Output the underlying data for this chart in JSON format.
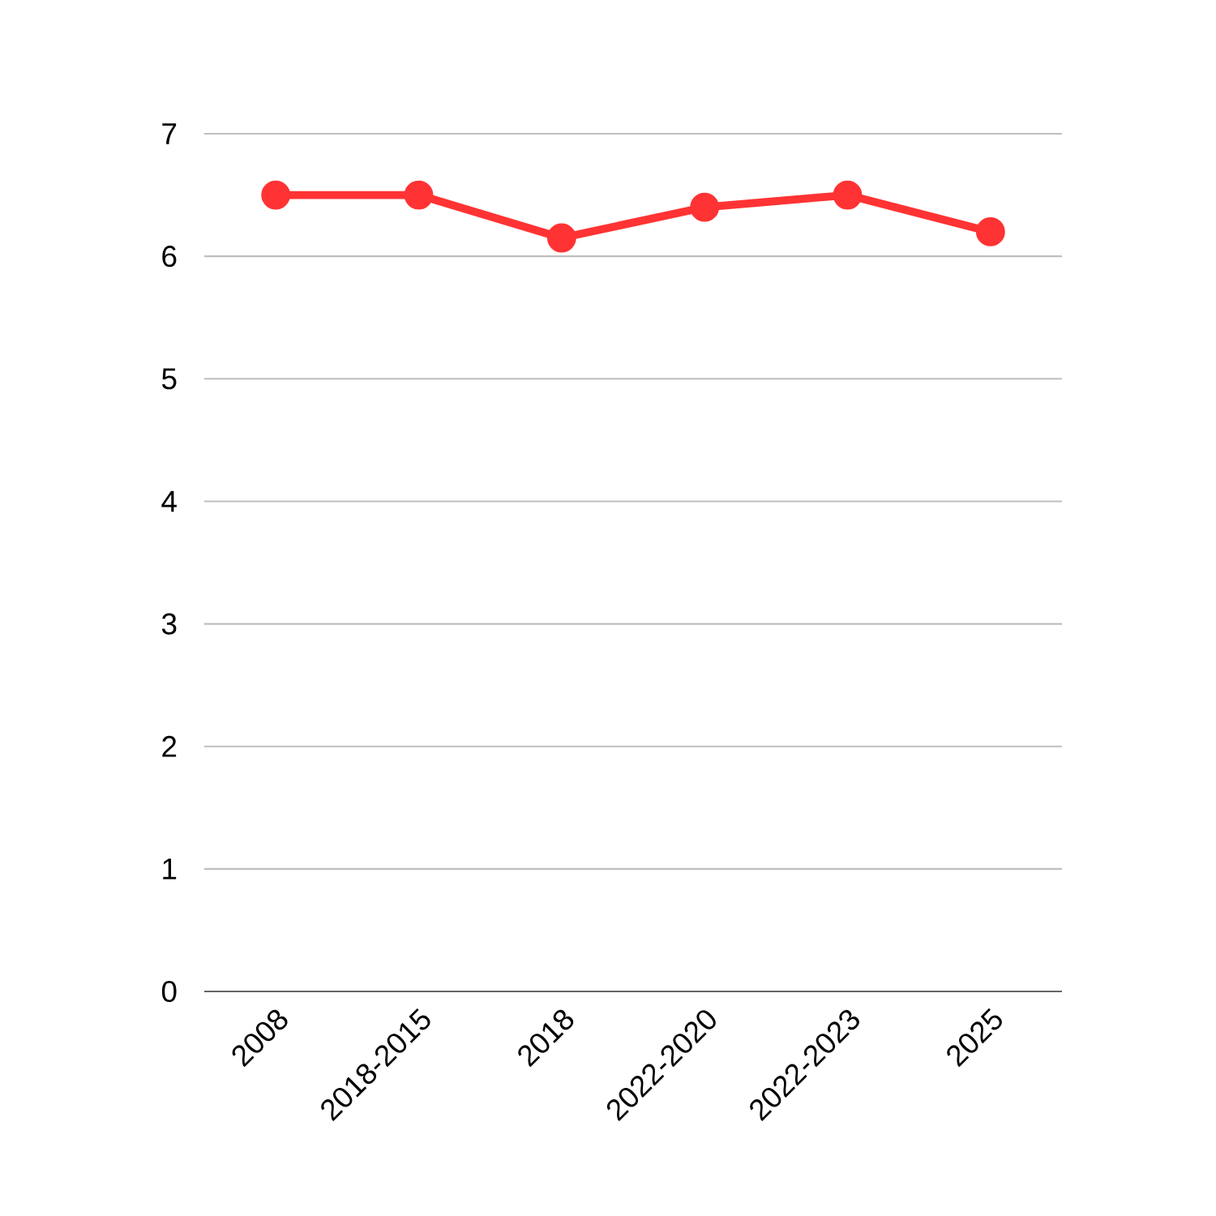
{
  "chart_data": {
    "type": "line",
    "categories": [
      "2008",
      "2018-2015",
      "2018",
      "2022-2020",
      "2022-2023",
      "2025"
    ],
    "values": [
      6.5,
      6.5,
      6.15,
      6.4,
      6.5,
      6.2
    ],
    "color": "#ff3333",
    "ylim": [
      0,
      7
    ],
    "yticks": [
      0,
      1,
      2,
      3,
      4,
      5,
      6,
      7
    ],
    "grid": "y",
    "marker": "circle",
    "line_style": "solid"
  }
}
